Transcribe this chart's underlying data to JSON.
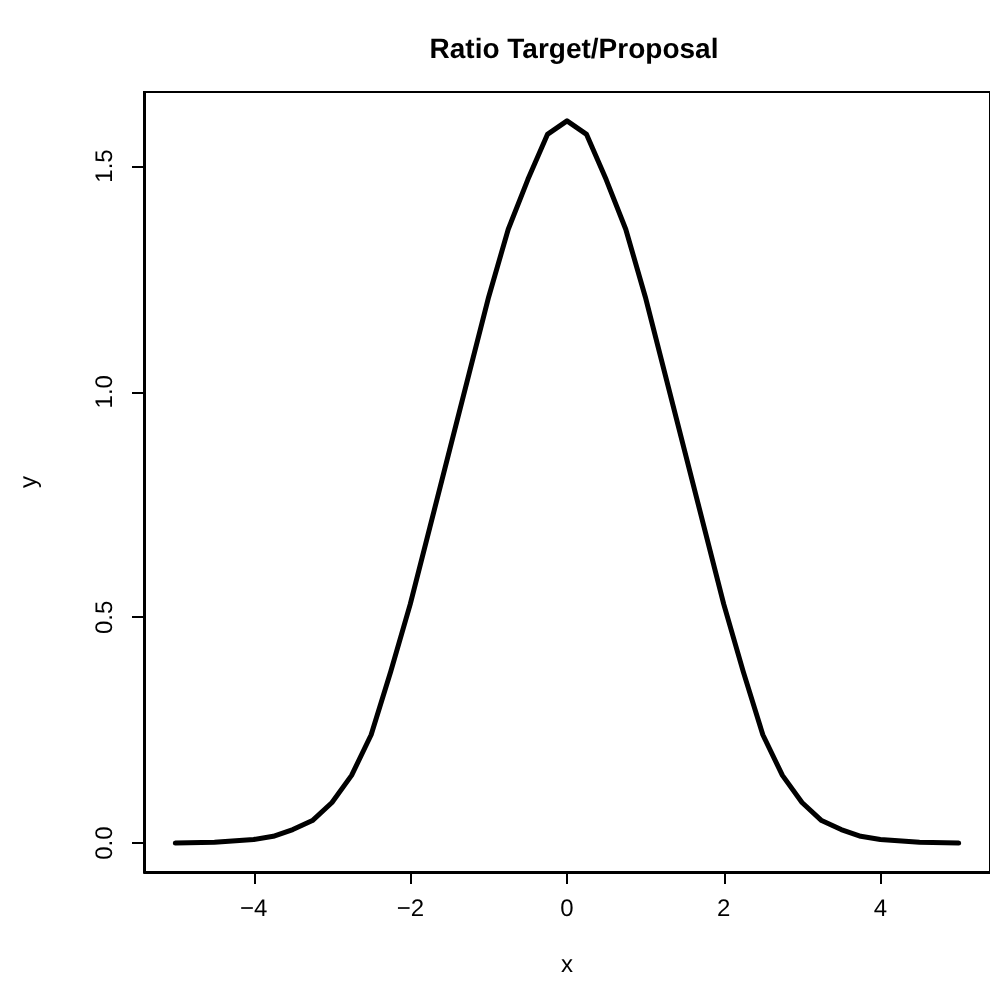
{
  "chart_data": {
    "type": "line",
    "title": "Ratio Target/Proposal",
    "xlabel": "x",
    "ylabel": "y",
    "x": [
      -5,
      -4.5,
      -4,
      -3.75,
      -3.5,
      -3.25,
      -3,
      -2.75,
      -2.5,
      -2.25,
      -2,
      -1.75,
      -1.5,
      -1.25,
      -1,
      -0.75,
      -0.5,
      -0.25,
      0,
      0.25,
      0.5,
      0.75,
      1,
      1.25,
      1.5,
      1.75,
      2,
      2.25,
      2.5,
      2.75,
      3,
      3.25,
      3.5,
      3.75,
      4,
      4.5,
      5
    ],
    "series": [
      {
        "color": "#000000",
        "values": [
          0.0,
          0.002,
          0.008,
          0.015,
          0.03,
          0.05,
          0.09,
          0.15,
          0.24,
          0.38,
          0.53,
          0.7,
          0.87,
          1.04,
          1.21,
          1.36,
          1.47,
          1.57,
          1.6,
          1.57,
          1.47,
          1.36,
          1.21,
          1.04,
          0.87,
          0.7,
          0.53,
          0.38,
          0.24,
          0.15,
          0.09,
          0.05,
          0.03,
          0.015,
          0.008,
          0.002,
          0.0
        ]
      }
    ],
    "xlim": [
      -5.4,
      5.4
    ],
    "ylim": [
      -0.064,
      1.664
    ],
    "xticks": [
      -4,
      -2,
      0,
      2,
      4
    ],
    "yticks": [
      {
        "value": 0,
        "label": "0.0"
      },
      0.5,
      {
        "value": 1,
        "label": "1.0"
      },
      1.5
    ],
    "marker": "none",
    "line_style": "solid",
    "grid": false
  }
}
